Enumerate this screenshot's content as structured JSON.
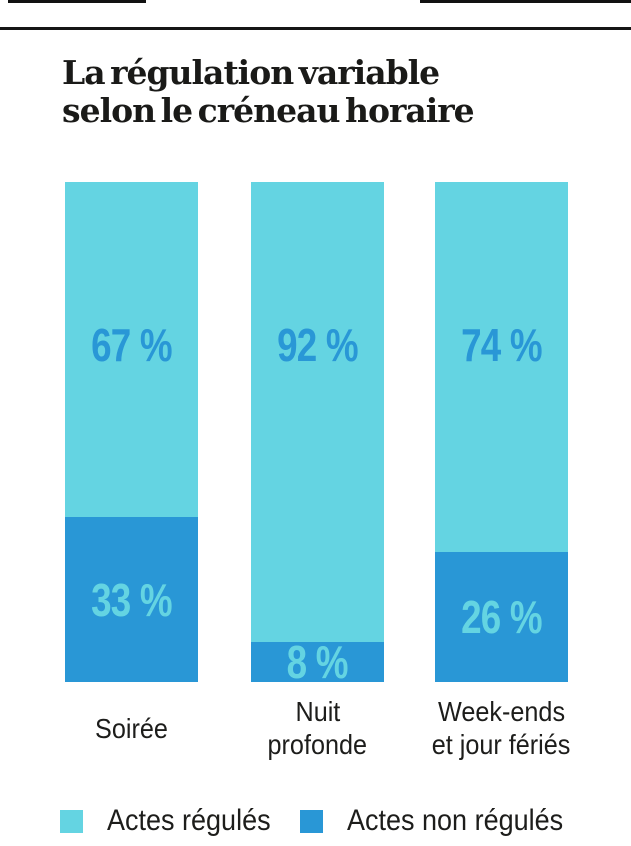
{
  "header": {
    "title_line1": "La régulation variable",
    "title_line2": "selon le créneau horaire"
  },
  "chart_data": {
    "type": "bar",
    "subtype": "stacked-percentage-columns",
    "title": "La régulation variable selon le créneau horaire",
    "categories": [
      "Soirée",
      "Nuit profonde",
      "Week-ends et jour fériés"
    ],
    "category_lines": [
      [
        "Soirée"
      ],
      [
        "Nuit",
        "profonde"
      ],
      [
        "Week-ends",
        "et jour fériés"
      ]
    ],
    "series": [
      {
        "name": "Actes régulés",
        "color": "#64d4e2",
        "values": [
          67,
          92,
          74
        ]
      },
      {
        "name": "Actes non régulés",
        "color": "#2997d6",
        "values": [
          33,
          8,
          26
        ]
      }
    ],
    "value_suffix": " %",
    "value_labels": [
      [
        "67 %",
        "92 %",
        "74 %"
      ],
      [
        "33 %",
        "8 %",
        "26 %"
      ]
    ],
    "ylim": [
      0,
      100
    ],
    "grid": false,
    "legend_position": "bottom"
  },
  "legend": {
    "items": [
      {
        "label": "Actes régulés",
        "color": "#64d4e2"
      },
      {
        "label": "Actes non régulés",
        "color": "#2997d6"
      }
    ]
  },
  "colors": {
    "regulated": "#64d4e2",
    "non_regulated": "#2997d6",
    "title_text": "#1a1a18",
    "label_text": "#1d1d1b",
    "rule": "#161616"
  }
}
